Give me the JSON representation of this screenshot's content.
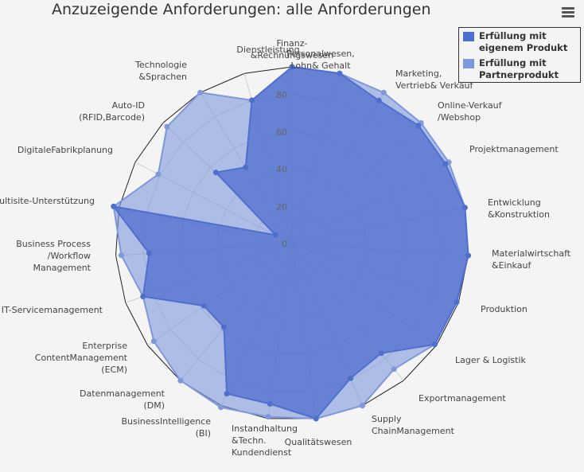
{
  "header": {
    "title": "Anzuzeigende Anforderungen: alle Anforderungen"
  },
  "menu": {
    "icon": "hamburger-menu-icon"
  },
  "colors": {
    "series1": "#4f6fce",
    "series2": "#7f98dc",
    "grid": "#cfcfcf",
    "web": "#222222",
    "background": "#f4f4f4"
  },
  "chart_data": {
    "type": "radar",
    "title": "Anzuzeigende Anforderungen: alle Anforderungen",
    "categories": [
      "Finanz-\n&Rechnungswesen",
      "Personalwesen,\nLohn& Gehalt",
      "Marketing,\nVertrieb& Verkauf",
      "Online-Verkauf\n/Webshop",
      "Projektmanagement",
      "Entwicklung\n&Konstruktion",
      "Materialwirtschaft\n&Einkauf",
      "Produktion",
      "Lager & Logistik",
      "Exportmanagement",
      "Supply\nChainManagement",
      "Qualitätswesen",
      "Instandhaltung\n&Techn.\nKundendienst",
      "BusinessIntelligence\n(BI)",
      "Datenmanagement\n(DM)",
      "Enterprise\nContentManagement\n(ECM)",
      "IT-Servicemanagement",
      "Business Process\n/Workflow\nManagement",
      "Multisite-Unterstützung",
      "DigitaleFabrikplanung",
      "Auto-ID\n(RFID,Barcode)",
      "Technologie\n&Sprachen",
      "Dienstleistung"
    ],
    "ticks": [
      0,
      20,
      40,
      60,
      80
    ],
    "ylim": [
      0,
      95
    ],
    "legend_position": "top-right",
    "series": [
      {
        "name": "Erfüllung mit eigenem Produkt",
        "values": [
          95,
          95,
          90,
          93,
          93,
          95,
          95,
          94,
          94,
          76,
          79,
          95,
          87,
          88,
          58,
          58,
          85,
          77,
          98,
          10,
          56,
          48,
          80
        ]
      },
      {
        "name": "Erfüllung mit Partnerprodukt",
        "values": [
          95,
          95,
          95,
          95,
          95,
          95,
          95,
          94,
          94,
          87,
          95,
          95,
          94,
          96,
          95,
          91,
          85,
          92,
          98,
          81,
          92,
          95,
          80
        ]
      }
    ]
  }
}
